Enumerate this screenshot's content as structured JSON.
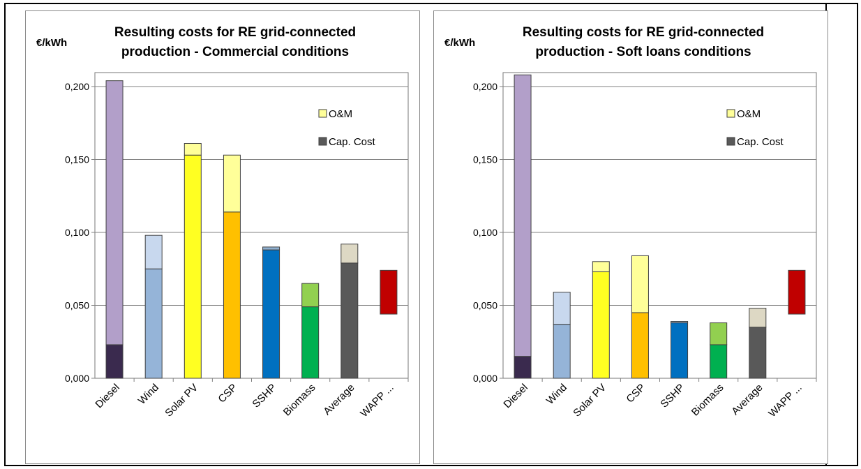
{
  "chart_data": [
    {
      "type": "bar",
      "stacked": true,
      "title_lines": [
        "Resulting costs for RE grid-connected",
        "production - Commercial conditions"
      ],
      "ylabel": "€/kWh",
      "ylim": [
        0,
        0.2
      ],
      "yticks": [
        "0,000",
        "0,050",
        "0,100",
        "0,150",
        "0,200"
      ],
      "ytick_values": [
        0,
        0.05,
        0.1,
        0.15,
        0.2
      ],
      "categories": [
        "Diesel",
        "Wind",
        "Solar PV",
        "CSP",
        "SSHP",
        "Biomass",
        "Average",
        "WAPP ..."
      ],
      "series": [
        {
          "name": "Cap. Cost",
          "values": [
            0.023,
            0.075,
            0.153,
            0.114,
            0.088,
            0.049,
            0.079,
            0.044
          ]
        },
        {
          "name": "O&M",
          "values": [
            0.181,
            0.023,
            0.008,
            0.039,
            0.002,
            0.016,
            0.013,
            0.03
          ]
        }
      ],
      "bar_colors": [
        [
          "#3a2a4e",
          "#b29fc9"
        ],
        [
          "#95b4d8",
          "#c8d8ee"
        ],
        [
          "#ffff22",
          "#ffff99"
        ],
        [
          "#ffc000",
          "#ffff99"
        ],
        [
          "#0070c0",
          "#8fb0d0"
        ],
        [
          "#00b050",
          "#92d050"
        ],
        [
          "#595959",
          "#ddd8c4"
        ],
        [
          "#ffffff",
          "#c00000"
        ]
      ],
      "transparent_base": [
        false,
        false,
        false,
        false,
        false,
        false,
        false,
        true
      ],
      "legend": [
        {
          "label": "O&M",
          "color": "#ffff99"
        },
        {
          "label": "Cap. Cost",
          "color": "#595959"
        }
      ],
      "legend_position": "top-right",
      "grid": true
    },
    {
      "type": "bar",
      "stacked": true,
      "title_lines": [
        "Resulting costs for RE grid-connected",
        "production - Soft loans conditions"
      ],
      "ylabel": "€/kWh",
      "ylim": [
        0,
        0.2
      ],
      "yticks": [
        "0,000",
        "0,050",
        "0,100",
        "0,150",
        "0,200"
      ],
      "ytick_values": [
        0,
        0.05,
        0.1,
        0.15,
        0.2
      ],
      "categories": [
        "Diesel",
        "Wind",
        "Solar PV",
        "CSP",
        "SSHP",
        "Biomass",
        "Average",
        "WAPP ..."
      ],
      "series": [
        {
          "name": "Cap. Cost",
          "values": [
            0.015,
            0.037,
            0.073,
            0.045,
            0.038,
            0.023,
            0.035,
            0.044
          ]
        },
        {
          "name": "O&M",
          "values": [
            0.193,
            0.022,
            0.007,
            0.039,
            0.001,
            0.015,
            0.013,
            0.03
          ]
        }
      ],
      "bar_colors": [
        [
          "#3a2a4e",
          "#b29fc9"
        ],
        [
          "#95b4d8",
          "#c8d8ee"
        ],
        [
          "#ffff22",
          "#ffff99"
        ],
        [
          "#ffc000",
          "#ffff99"
        ],
        [
          "#0070c0",
          "#8fb0d0"
        ],
        [
          "#00b050",
          "#92d050"
        ],
        [
          "#595959",
          "#ddd8c4"
        ],
        [
          "#ffffff",
          "#c00000"
        ]
      ],
      "transparent_base": [
        false,
        false,
        false,
        false,
        false,
        false,
        false,
        true
      ],
      "legend": [
        {
          "label": "O&M",
          "color": "#ffff99"
        },
        {
          "label": "Cap. Cost",
          "color": "#595959"
        }
      ],
      "legend_position": "top-right",
      "grid": true
    }
  ]
}
